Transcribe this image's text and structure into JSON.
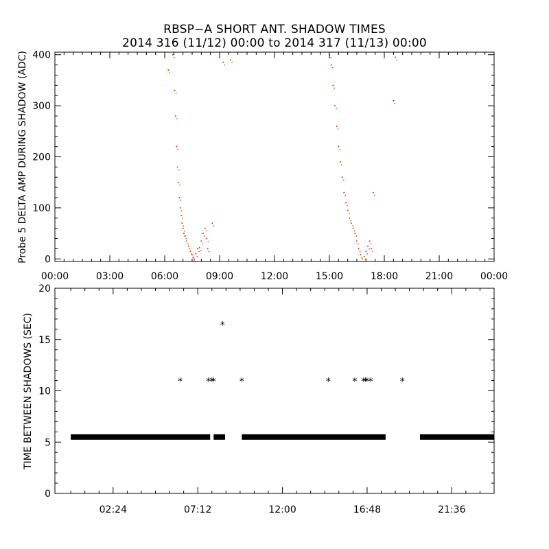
{
  "title_line1": "RBSP−A SHORT ANT. SHADOW TIMES",
  "title_line2": "2014 316 (11/12) 00:00 to 2014 317 (11/13) 00:00",
  "chart_data": [
    {
      "type": "scatter",
      "ylabel": "Probe 5 DELTA AMP DURING SHADOW (ADC)",
      "xlabel": "",
      "xlim_hours": [
        0,
        24
      ],
      "ylim": [
        -5,
        405
      ],
      "x_tick_labels": [
        "00:00",
        "03:00",
        "06:00",
        "09:00",
        "12:00",
        "15:00",
        "18:00",
        "21:00",
        "00:00"
      ],
      "y_tick_labels": [
        "0",
        "100",
        "200",
        "300",
        "400"
      ],
      "point_color": "#e03000",
      "series": [
        {
          "x": [
            6.2,
            6.45,
            6.55,
            6.6,
            6.65,
            6.7,
            6.75,
            6.8,
            6.85,
            6.9,
            6.95,
            7.0,
            7.05,
            7.1,
            7.2,
            7.3,
            7.4,
            7.5,
            7.55,
            7.6,
            7.7,
            7.8,
            7.9,
            8.0,
            8.1,
            8.2,
            8.3,
            8.35,
            8.6,
            9.2,
            9.6
          ],
          "y": [
            370,
            400,
            330,
            280,
            220,
            180,
            150,
            120,
            100,
            85,
            70,
            60,
            50,
            45,
            35,
            25,
            15,
            8,
            3,
            0,
            10,
            20,
            22,
            35,
            50,
            60,
            40,
            20,
            70,
            385,
            390
          ]
        },
        {
          "x": [
            15.0,
            15.1,
            15.2,
            15.3,
            15.4,
            15.5,
            15.6,
            15.7,
            15.8,
            15.9,
            16.0,
            16.1,
            16.2,
            16.3,
            16.4,
            16.5,
            16.6,
            16.7,
            16.8,
            16.9,
            17.0,
            17.1,
            17.2,
            17.3,
            17.4,
            18.5,
            18.6
          ],
          "y": [
            400,
            380,
            340,
            300,
            260,
            220,
            190,
            160,
            130,
            110,
            95,
            80,
            70,
            60,
            50,
            35,
            20,
            8,
            0,
            5,
            15,
            25,
            35,
            20,
            130,
            310,
            395
          ]
        }
      ]
    },
    {
      "type": "scatter",
      "ylabel": "TIME BETWEEN SHADOWS (SEC)",
      "xlabel": "",
      "xlim_hours": [
        -0.9,
        24
      ],
      "ylim": [
        0,
        20
      ],
      "x_tick_labels": [
        "02:24",
        "07:12",
        "12:00",
        "16:48",
        "21:36"
      ],
      "y_tick_labels": [
        "0",
        "5",
        "10",
        "15",
        "20"
      ],
      "baseline_value": 5.5,
      "baseline_segments_hours": [
        [
          0,
          7.9
        ],
        [
          8.1,
          8.75
        ],
        [
          9.7,
          17.85
        ],
        [
          19.8,
          24
        ]
      ],
      "outliers": {
        "x": [
          6.2,
          7.8,
          8.0,
          8.1,
          8.6,
          9.7,
          14.6,
          16.1,
          16.6,
          16.7,
          16.8,
          17.0,
          18.8
        ],
        "y": [
          11,
          11,
          11,
          11,
          16.5,
          11,
          11,
          11,
          11,
          11,
          11,
          11,
          11
        ]
      },
      "marker": "*",
      "point_color": "#000000"
    }
  ]
}
